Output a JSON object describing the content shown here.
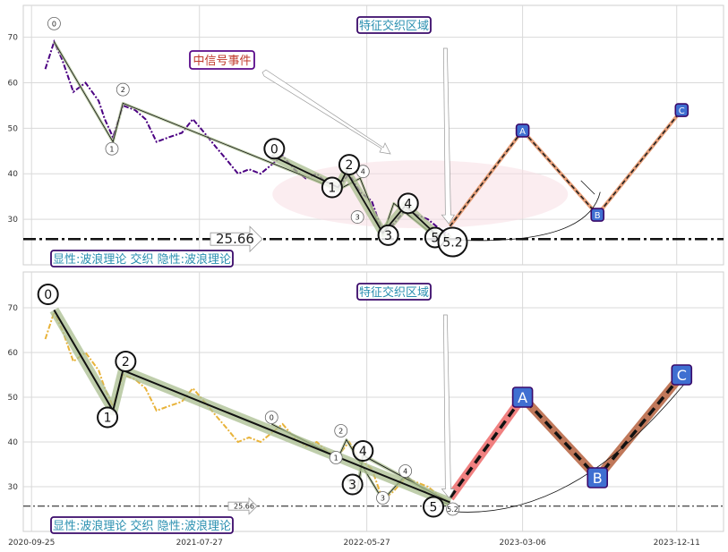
{
  "chart_data": [
    {
      "type": "line",
      "panel": "top",
      "ylim": [
        20,
        77
      ],
      "yticks": [
        30,
        40,
        50,
        60,
        70
      ],
      "xlim": [
        "2020-09-10",
        "2024-03-05"
      ],
      "xtick_dates": [
        "2020-09-25",
        "2021-07-27",
        "2022-05-27",
        "2023-03-06",
        "2023-12-11"
      ],
      "grid": true,
      "series_color": "#4B0082",
      "price_series": {
        "x": [
          "2020-10-20",
          "2020-11-05",
          "2020-11-20",
          "2020-12-10",
          "2021-01-01",
          "2021-01-25",
          "2021-02-05",
          "2021-02-20",
          "2021-03-10",
          "2021-04-01",
          "2021-04-20",
          "2021-05-10",
          "2021-06-01",
          "2021-06-25",
          "2021-07-15",
          "2021-08-05",
          "2021-08-25",
          "2021-09-15",
          "2021-10-05",
          "2021-10-25",
          "2021-11-15",
          "2021-12-05",
          "2021-12-25",
          "2022-01-15",
          "2022-02-05",
          "2022-02-25",
          "2022-03-15",
          "2022-04-05",
          "2022-04-25",
          "2022-05-15",
          "2022-06-05",
          "2022-06-25",
          "2022-07-15",
          "2022-08-05",
          "2022-08-25",
          "2022-09-15",
          "2022-10-05",
          "2022-10-25"
        ],
        "y": [
          63,
          69,
          65,
          58,
          60,
          56,
          52,
          48,
          55,
          54,
          52,
          47,
          48,
          49,
          52,
          49,
          46,
          43,
          40,
          41,
          40,
          42,
          44,
          41,
          39,
          40,
          38,
          37,
          40,
          36,
          34,
          27,
          29,
          32,
          31,
          30,
          28,
          26.5
        ]
      },
      "wave_small": {
        "x": [
          "2020-11-05",
          "2021-02-20",
          "2021-03-10",
          "2022-04-05",
          "2022-05-15",
          "2022-06-25",
          "2022-07-15",
          "2022-09-15",
          "2022-10-25"
        ],
        "y": [
          69,
          47,
          55.5,
          36.5,
          39,
          26.5,
          33.5,
          27.5,
          25.5
        ],
        "labels": [
          "0",
          "1",
          "2",
          "",
          "",
          "",
          "",
          "",
          "5.2"
        ]
      },
      "wave_big": {
        "x": [
          "2021-12-05",
          "2022-04-05",
          "2022-04-20",
          "2022-06-25",
          "2022-08-05",
          "2022-10-01",
          "2022-10-25"
        ],
        "y": [
          44,
          37,
          40.5,
          27,
          33,
          26.5,
          25.5
        ],
        "labels": [
          "0",
          "1",
          "2",
          "3",
          "4",
          "5",
          "5.2"
        ]
      },
      "small_labels": [
        {
          "x": "2020-11-05",
          "y": 73,
          "text": "0"
        },
        {
          "x": "2021-02-18",
          "y": 45.5,
          "text": "1"
        },
        {
          "x": "2021-03-10",
          "y": 58.5,
          "text": "2"
        },
        {
          "x": "2022-05-10",
          "y": 30.5,
          "text": "3"
        },
        {
          "x": "2022-05-20",
          "y": 40.5,
          "text": "4"
        }
      ],
      "big_labels": [
        {
          "x": "2021-12-10",
          "y": 45.5,
          "text": "0"
        },
        {
          "x": "2022-03-25",
          "y": 37,
          "text": "1"
        },
        {
          "x": "2022-04-25",
          "y": 42,
          "text": "2"
        },
        {
          "x": "2022-07-05",
          "y": 26.5,
          "text": "3"
        },
        {
          "x": "2022-08-10",
          "y": 33.5,
          "text": "4"
        },
        {
          "x": "2022-09-28",
          "y": 26,
          "text": "5"
        },
        {
          "x": "2022-10-30",
          "y": 25,
          "text": "5.2"
        }
      ],
      "projection": {
        "x": [
          "2022-10-25",
          "2023-03-06",
          "2023-07-20",
          "2023-12-20"
        ],
        "y": [
          28.5,
          49.5,
          31,
          54
        ],
        "labels": [
          "",
          "A",
          "B",
          "C"
        ]
      },
      "support_level": 25.66,
      "support_label": "25.66",
      "annotations": {
        "feature_zone": "特征交织区域",
        "signal_event": "中信号事件"
      },
      "legend_text": "显性:波浪理论 交织 隐性:波浪理论"
    },
    {
      "type": "line",
      "panel": "bottom",
      "ylim": [
        20,
        78
      ],
      "yticks": [
        30,
        40,
        50,
        60,
        70
      ],
      "xlim": [
        "2020-09-10",
        "2024-03-05"
      ],
      "xtick_labels": [
        "2020-09-25",
        "2021-07-27",
        "2022-05-27",
        "2023-03-06",
        "2023-12-11"
      ],
      "grid": true,
      "series_color": "#E8B33A",
      "price_series": {
        "x": [
          "2020-10-20",
          "2020-11-05",
          "2020-11-20",
          "2020-12-10",
          "2021-01-01",
          "2021-01-25",
          "2021-02-05",
          "2021-02-20",
          "2021-03-10",
          "2021-04-01",
          "2021-04-20",
          "2021-05-10",
          "2021-06-01",
          "2021-06-25",
          "2021-07-15",
          "2021-08-05",
          "2021-08-25",
          "2021-09-15",
          "2021-10-05",
          "2021-10-25",
          "2021-11-15",
          "2021-12-05",
          "2021-12-25",
          "2022-01-15",
          "2022-02-05",
          "2022-02-25",
          "2022-03-15",
          "2022-04-05",
          "2022-04-25",
          "2022-05-15",
          "2022-06-05",
          "2022-06-25",
          "2022-07-15",
          "2022-08-05",
          "2022-08-25",
          "2022-09-15",
          "2022-10-05",
          "2022-10-25"
        ],
        "y": [
          63,
          69,
          65,
          58,
          60,
          56,
          52,
          48,
          55,
          54,
          52,
          47,
          48,
          49,
          52,
          49,
          46,
          43,
          40,
          41,
          40,
          42,
          44,
          41,
          39,
          40,
          38,
          37,
          40,
          36,
          34,
          27,
          29,
          32,
          31,
          30,
          28,
          26.5
        ]
      },
      "wave_big": {
        "x": [
          "2020-11-05",
          "2021-02-20",
          "2021-03-10",
          "2022-10-25"
        ],
        "y": [
          69.5,
          47,
          56,
          26.5
        ],
        "labels": [
          "0",
          "1",
          "2",
          "5"
        ]
      },
      "wave_small": {
        "x": [
          "2021-12-05",
          "2022-04-05",
          "2022-04-20",
          "2022-06-25",
          "2022-08-05",
          "2022-10-01",
          "2022-10-25"
        ],
        "y": [
          44,
          36.5,
          40.5,
          27,
          32.5,
          27,
          26
        ]
      },
      "wave_mid": {
        "x": [
          "2022-04-20",
          "2022-05-10",
          "2022-05-20",
          "2022-10-25"
        ],
        "y": [
          32,
          29,
          37,
          26.5
        ]
      },
      "small_labels": [
        {
          "x": "2021-12-05",
          "y": 45.5,
          "text": "0"
        },
        {
          "x": "2022-04-01",
          "y": 36.5,
          "text": "1"
        },
        {
          "x": "2022-04-10",
          "y": 42.5,
          "text": "2"
        },
        {
          "x": "2022-06-25",
          "y": 27.5,
          "text": "3"
        },
        {
          "x": "2022-08-05",
          "y": 33.5,
          "text": "4"
        },
        {
          "x": "2022-10-30",
          "y": 25,
          "text": "5.2"
        }
      ],
      "big_labels": [
        {
          "x": "2020-10-25",
          "y": 73,
          "text": "0"
        },
        {
          "x": "2021-02-10",
          "y": 45.5,
          "text": "1"
        },
        {
          "x": "2021-03-15",
          "y": 58,
          "text": "2"
        },
        {
          "x": "2022-05-01",
          "y": 30.5,
          "text": "3"
        },
        {
          "x": "2022-05-20",
          "y": 38,
          "text": "4"
        },
        {
          "x": "2022-09-25",
          "y": 25.5,
          "text": "5"
        }
      ],
      "projection": {
        "x": [
          "2022-10-25",
          "2023-03-06",
          "2023-07-20",
          "2023-12-20"
        ],
        "y": [
          27.5,
          50,
          32,
          55
        ],
        "labels": [
          "",
          "A",
          "B",
          "C"
        ]
      },
      "support_level": 25.66,
      "support_label": "25.66",
      "annotations": {
        "feature_zone": "特征交织区域"
      },
      "legend_text": "显性:波浪理论 交织 隐性:波浪理论"
    }
  ]
}
